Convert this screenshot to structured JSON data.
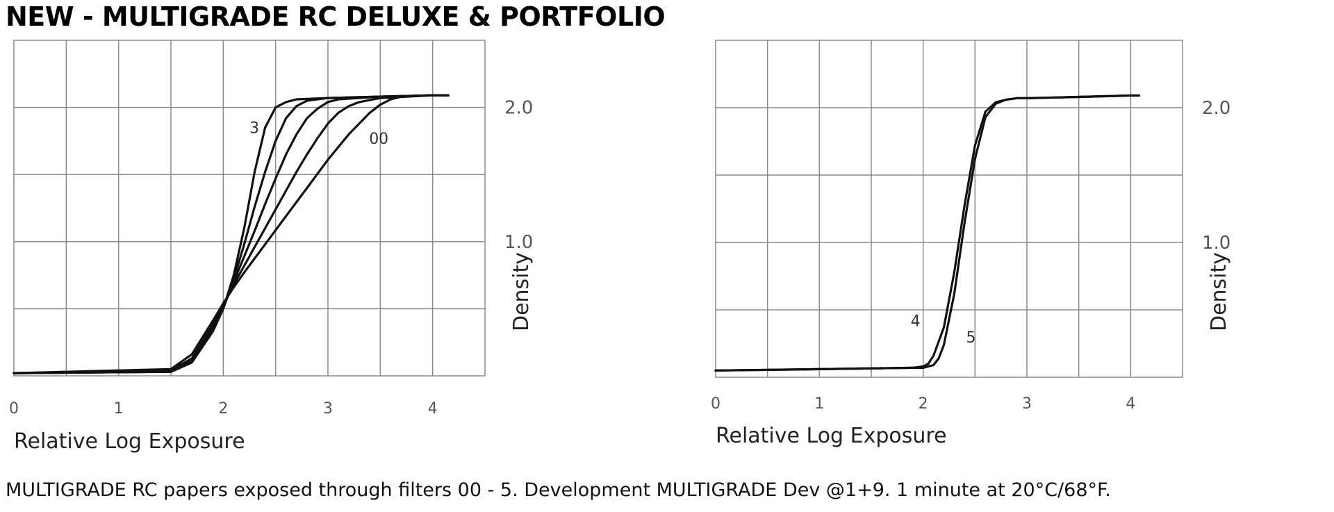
{
  "title": "NEW - MULTIGRADE RC DELUXE & PORTFOLIO",
  "caption": "MULTIGRADE RC papers exposed through filters 00 - 5.  Development MULTIGRADE Dev @1+9. 1 minute at 20°C/68°F.",
  "chart_data": [
    {
      "type": "line",
      "title": "",
      "xlabel": "Relative Log Exposure",
      "ylabel": "Density",
      "xlim": [
        0,
        4.5
      ],
      "ylim": [
        0,
        2.5
      ],
      "xticks": [
        "0",
        "1",
        "2",
        "3",
        "4"
      ],
      "yticks": [
        "1.0",
        "2.0"
      ],
      "grid": true,
      "series": [
        {
          "name": "3",
          "x": [
            0,
            1.5,
            1.7,
            1.9,
            2.0,
            2.1,
            2.2,
            2.3,
            2.4,
            2.5,
            2.6,
            2.7,
            3.0,
            3.5,
            4.0,
            4.15
          ],
          "y": [
            0.02,
            0.03,
            0.1,
            0.33,
            0.5,
            0.75,
            1.1,
            1.52,
            1.85,
            2.0,
            2.04,
            2.06,
            2.07,
            2.08,
            2.09,
            2.09
          ]
        },
        {
          "name": "",
          "x": [
            0,
            1.5,
            1.7,
            1.9,
            2.0,
            2.1,
            2.2,
            2.3,
            2.4,
            2.5,
            2.6,
            2.7,
            2.8,
            3.0,
            3.5,
            4.0,
            4.15
          ],
          "y": [
            0.02,
            0.03,
            0.1,
            0.34,
            0.5,
            0.72,
            0.98,
            1.26,
            1.52,
            1.75,
            1.92,
            2.01,
            2.05,
            2.07,
            2.08,
            2.09,
            2.09
          ]
        },
        {
          "name": "",
          "x": [
            0,
            1.5,
            1.7,
            1.9,
            2.0,
            2.1,
            2.2,
            2.3,
            2.4,
            2.5,
            2.6,
            2.7,
            2.8,
            2.9,
            3.0,
            3.1,
            3.5,
            4.0,
            4.15
          ],
          "y": [
            0.02,
            0.03,
            0.11,
            0.36,
            0.51,
            0.7,
            0.89,
            1.08,
            1.28,
            1.47,
            1.65,
            1.8,
            1.92,
            1.99,
            2.04,
            2.06,
            2.08,
            2.09,
            2.09
          ]
        },
        {
          "name": "",
          "x": [
            0,
            1.5,
            1.7,
            1.9,
            2.0,
            2.1,
            2.2,
            2.3,
            2.4,
            2.5,
            2.6,
            2.7,
            2.8,
            2.9,
            3.0,
            3.1,
            3.2,
            3.3,
            3.5,
            4.0,
            4.15
          ],
          "y": [
            0.02,
            0.04,
            0.13,
            0.38,
            0.52,
            0.68,
            0.82,
            0.96,
            1.1,
            1.24,
            1.38,
            1.52,
            1.65,
            1.77,
            1.88,
            1.96,
            2.01,
            2.04,
            2.07,
            2.09,
            2.09
          ]
        },
        {
          "name": "00",
          "x": [
            0,
            1.5,
            1.7,
            1.9,
            2.0,
            2.1,
            2.2,
            2.4,
            2.6,
            2.8,
            3.0,
            3.2,
            3.4,
            3.5,
            3.6,
            3.7,
            4.0,
            4.15
          ],
          "y": [
            0.02,
            0.05,
            0.16,
            0.41,
            0.54,
            0.66,
            0.77,
            0.98,
            1.19,
            1.4,
            1.61,
            1.8,
            1.96,
            2.02,
            2.06,
            2.08,
            2.09,
            2.09
          ]
        }
      ]
    },
    {
      "type": "line",
      "title": "",
      "xlabel": "Relative Log Exposure",
      "ylabel": "Density",
      "xlim": [
        0,
        4.5
      ],
      "ylim": [
        0,
        2.5
      ],
      "xticks": [
        "0",
        "1",
        "2",
        "3",
        "4"
      ],
      "yticks": [
        "1.0",
        "2.0"
      ],
      "grid": true,
      "series": [
        {
          "name": "4",
          "x": [
            0,
            1,
            1.9,
            2.0,
            2.05,
            2.1,
            2.2,
            2.3,
            2.4,
            2.5,
            2.6,
            2.7,
            2.8,
            2.9,
            3.0,
            3.5,
            4.0,
            4.08
          ],
          "y": [
            0.05,
            0.06,
            0.07,
            0.08,
            0.1,
            0.16,
            0.37,
            0.78,
            1.28,
            1.72,
            1.97,
            2.04,
            2.06,
            2.07,
            2.07,
            2.08,
            2.09,
            2.09
          ]
        },
        {
          "name": "5",
          "x": [
            0,
            1,
            1.9,
            2.0,
            2.1,
            2.15,
            2.2,
            2.3,
            2.4,
            2.5,
            2.6,
            2.7,
            2.8,
            2.9,
            3.0,
            3.5,
            4.0,
            4.08
          ],
          "y": [
            0.05,
            0.06,
            0.07,
            0.07,
            0.09,
            0.14,
            0.24,
            0.62,
            1.15,
            1.62,
            1.93,
            2.03,
            2.06,
            2.07,
            2.07,
            2.08,
            2.09,
            2.09
          ]
        }
      ]
    }
  ]
}
